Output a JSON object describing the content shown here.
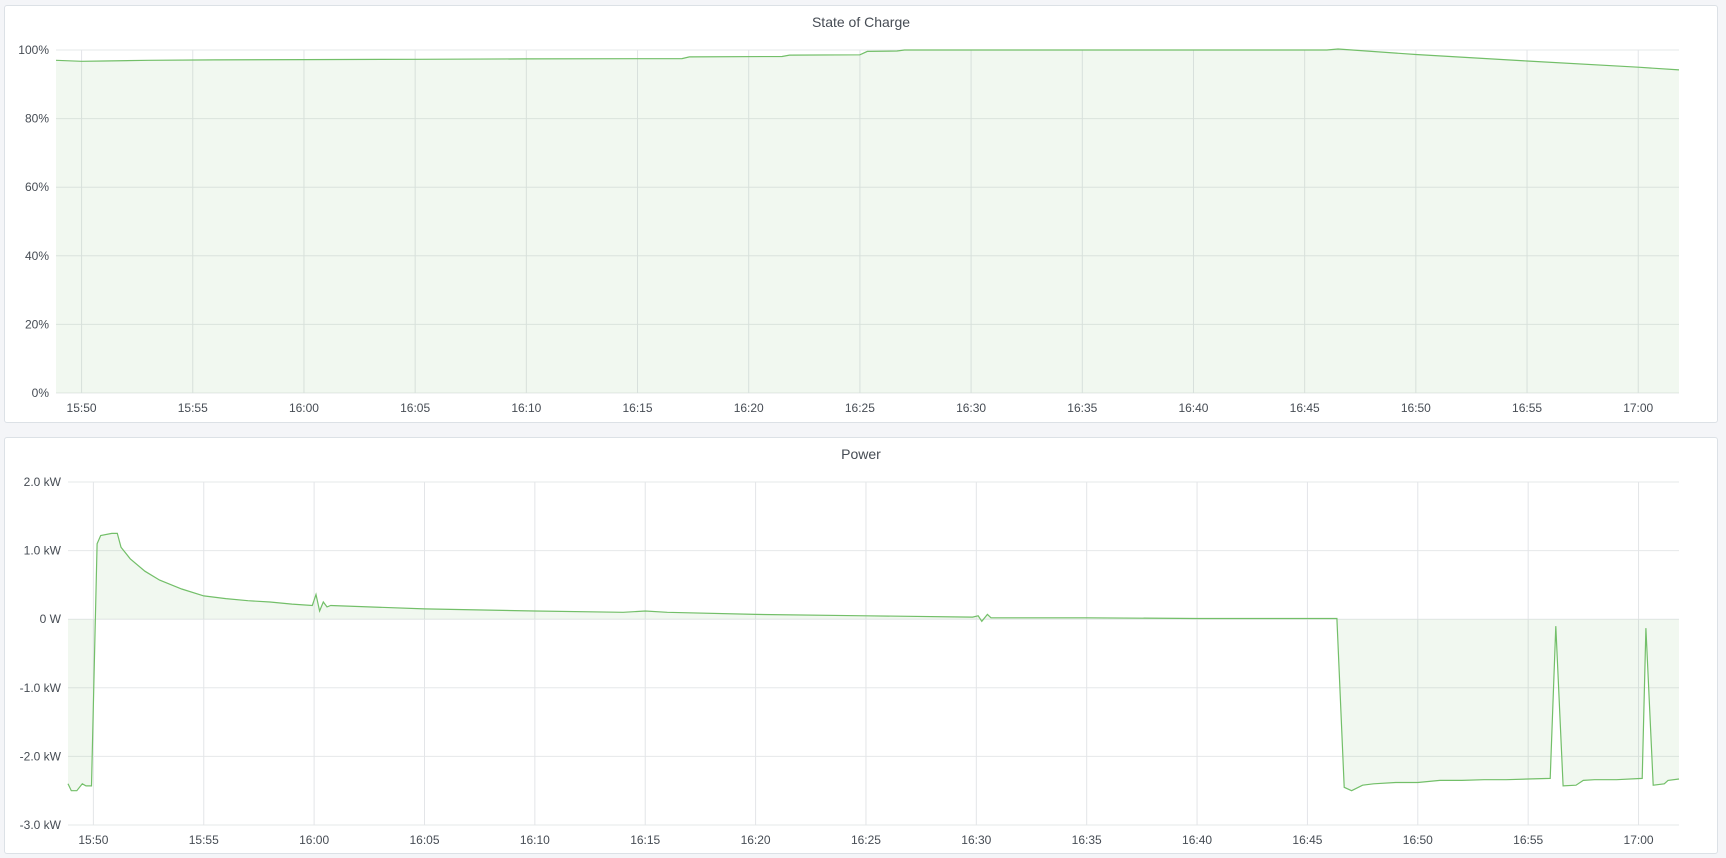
{
  "chart_data": [
    {
      "type": "area",
      "title": "State of Charge",
      "x_domain": [
        "15:48:51",
        "17:01:50"
      ],
      "x_ticks": [
        "15:50",
        "15:55",
        "16:00",
        "16:05",
        "16:10",
        "16:15",
        "16:20",
        "16:25",
        "16:30",
        "16:35",
        "16:40",
        "16:45",
        "16:50",
        "16:55",
        "17:00"
      ],
      "y_ticks": [
        0,
        20,
        40,
        60,
        80,
        100
      ],
      "y_tick_labels": [
        "0%",
        "20%",
        "40%",
        "60%",
        "80%",
        "100%"
      ],
      "ylim": [
        0,
        100
      ],
      "grid": true,
      "color": "#73bf69",
      "points": [
        [
          "15:48:51",
          97.0
        ],
        [
          "15:50:00",
          96.7
        ],
        [
          "15:51:00",
          96.8
        ],
        [
          "15:53:00",
          97.0
        ],
        [
          "15:56:00",
          97.1
        ],
        [
          "16:00:00",
          97.2
        ],
        [
          "16:05:00",
          97.3
        ],
        [
          "16:10:00",
          97.4
        ],
        [
          "16:17:00",
          97.5
        ],
        [
          "16:17:20",
          98.0
        ],
        [
          "16:21:30",
          98.1
        ],
        [
          "16:21:50",
          98.5
        ],
        [
          "16:25:00",
          98.6
        ],
        [
          "16:25:20",
          99.6
        ],
        [
          "16:26:40",
          99.7
        ],
        [
          "16:27:00",
          100
        ],
        [
          "16:46:00",
          100
        ],
        [
          "16:46:30",
          100.3
        ],
        [
          "16:50:00",
          98.7
        ],
        [
          "16:55:00",
          96.8
        ],
        [
          "17:00:00",
          95.0
        ],
        [
          "17:01:50",
          94.2
        ]
      ]
    },
    {
      "type": "area",
      "title": "Power",
      "x_domain": [
        "15:48:51",
        "17:01:50"
      ],
      "x_ticks": [
        "15:50",
        "15:55",
        "16:00",
        "16:05",
        "16:10",
        "16:15",
        "16:20",
        "16:25",
        "16:30",
        "16:35",
        "16:40",
        "16:45",
        "16:50",
        "16:55",
        "17:00"
      ],
      "y_ticks": [
        -3,
        -2,
        -1,
        0,
        1,
        2
      ],
      "y_tick_labels": [
        "-3.0 kW",
        "-2.0 kW",
        "-1.0 kW",
        "0 W",
        "1.0 kW",
        "2.0 kW"
      ],
      "ylim": [
        -3,
        2
      ],
      "unit": "kW",
      "grid": true,
      "color": "#73bf69",
      "points": [
        [
          "15:48:51",
          -2.4
        ],
        [
          "15:49:00",
          -2.5
        ],
        [
          "15:49:15",
          -2.5
        ],
        [
          "15:49:30",
          -2.4
        ],
        [
          "15:49:40",
          -2.43
        ],
        [
          "15:49:55",
          -2.43
        ],
        [
          "15:50:10",
          1.1
        ],
        [
          "15:50:20",
          1.22
        ],
        [
          "15:50:50",
          1.25
        ],
        [
          "15:51:05",
          1.25
        ],
        [
          "15:51:15",
          1.05
        ],
        [
          "15:51:40",
          0.88
        ],
        [
          "15:52:20",
          0.7
        ],
        [
          "15:53:00",
          0.57
        ],
        [
          "15:54:00",
          0.44
        ],
        [
          "15:55:00",
          0.34
        ],
        [
          "15:56:00",
          0.3
        ],
        [
          "15:57:00",
          0.27
        ],
        [
          "15:58:00",
          0.25
        ],
        [
          "15:59:00",
          0.22
        ],
        [
          "15:59:55",
          0.2
        ],
        [
          "16:00:05",
          0.36
        ],
        [
          "16:00:15",
          0.12
        ],
        [
          "16:00:25",
          0.25
        ],
        [
          "16:00:35",
          0.18
        ],
        [
          "16:00:45",
          0.2
        ],
        [
          "16:05:00",
          0.15
        ],
        [
          "16:10:00",
          0.12
        ],
        [
          "16:14:00",
          0.1
        ],
        [
          "16:15:00",
          0.12
        ],
        [
          "16:16:00",
          0.1
        ],
        [
          "16:20:00",
          0.07
        ],
        [
          "16:25:00",
          0.05
        ],
        [
          "16:29:50",
          0.03
        ],
        [
          "16:30:05",
          0.05
        ],
        [
          "16:30:15",
          -0.03
        ],
        [
          "16:30:30",
          0.07
        ],
        [
          "16:30:40",
          0.02
        ],
        [
          "16:35:00",
          0.02
        ],
        [
          "16:40:00",
          0.01
        ],
        [
          "16:46:20",
          0.01
        ],
        [
          "16:46:40",
          -2.45
        ],
        [
          "16:47:00",
          -2.5
        ],
        [
          "16:47:30",
          -2.42
        ],
        [
          "16:48:00",
          -2.4
        ],
        [
          "16:49:00",
          -2.38
        ],
        [
          "16:50:00",
          -2.38
        ],
        [
          "16:51:00",
          -2.35
        ],
        [
          "16:52:00",
          -2.35
        ],
        [
          "16:53:00",
          -2.34
        ],
        [
          "16:54:00",
          -2.34
        ],
        [
          "16:55:00",
          -2.33
        ],
        [
          "16:56:00",
          -2.32
        ],
        [
          "16:56:15",
          -0.1
        ],
        [
          "16:56:35",
          -2.43
        ],
        [
          "16:57:10",
          -2.42
        ],
        [
          "16:57:30",
          -2.35
        ],
        [
          "16:58:00",
          -2.34
        ],
        [
          "16:59:00",
          -2.34
        ],
        [
          "17:00:10",
          -2.32
        ],
        [
          "17:00:20",
          -0.13
        ],
        [
          "17:00:40",
          -2.42
        ],
        [
          "17:01:10",
          -2.4
        ],
        [
          "17:01:20",
          -2.35
        ],
        [
          "17:01:50",
          -2.33
        ]
      ]
    }
  ]
}
